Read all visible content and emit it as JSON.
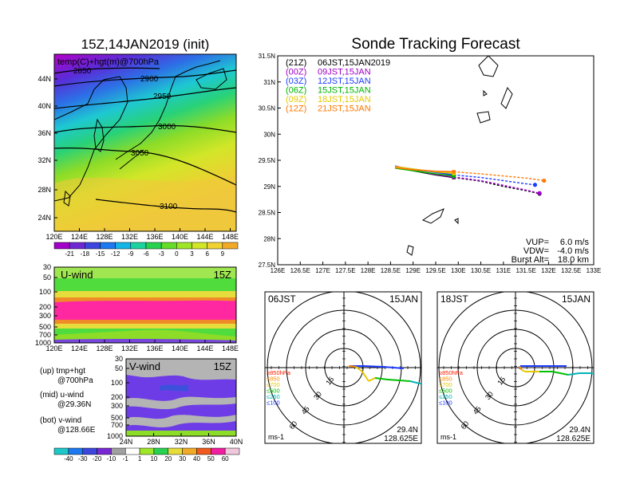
{
  "left": {
    "title": "15Z,14JAN2019 (init)",
    "map": {
      "label": "temp(C)+hgt(m)@700hPa",
      "lat_ticks": [
        "44N",
        "40N",
        "36N",
        "32N",
        "28N",
        "24N"
      ],
      "lon_ticks": [
        "120E",
        "124E",
        "128E",
        "132E",
        "136E",
        "140E",
        "144E",
        "148E"
      ],
      "contours": [
        "2850",
        "2900",
        "2950",
        "3000",
        "3050",
        "3100"
      ],
      "colorbar_ticks": [
        "-21",
        "-18",
        "-15",
        "-12",
        "-9",
        "-6",
        "-3",
        "0",
        "3",
        "6",
        "9"
      ]
    },
    "uwind": {
      "label": "U-wind",
      "time": "15Z",
      "p_ticks": [
        "30",
        "50",
        "100",
        "200",
        "300",
        "500",
        "700",
        "1000"
      ],
      "lon_ticks": [
        "120E",
        "124E",
        "128E",
        "132E",
        "136E",
        "140E",
        "144E",
        "148E"
      ]
    },
    "vwind": {
      "label": "V-wind",
      "time": "15Z",
      "p_ticks": [
        "30",
        "50",
        "100",
        "200",
        "300",
        "500",
        "700",
        "1000"
      ],
      "lat_ticks": [
        "24N",
        "28N",
        "32N",
        "36N",
        "40N"
      ],
      "colorbar_ticks": [
        "-40",
        "-30",
        "-20",
        "-10",
        "-1",
        "1",
        "10",
        "20",
        "30",
        "40",
        "50",
        "60"
      ]
    },
    "notes": [
      {
        "a": "(up) tmp+hgt",
        "b": "@700hPa"
      },
      {
        "a": "(mid) u-wind",
        "b": "@29.36N"
      },
      {
        "a": "(bot) v-wind",
        "b": "@128.66E"
      }
    ]
  },
  "right": {
    "title": "Sonde Tracking Forecast",
    "track": {
      "lat_ticks": [
        "31.5N",
        "31N",
        "30.5N",
        "30N",
        "29.5N",
        "29N",
        "28.5N",
        "28N",
        "27.5N"
      ],
      "lon_ticks": [
        "126E",
        "126.5E",
        "127E",
        "127.5E",
        "128E",
        "128.5E",
        "129E",
        "129.5E",
        "130E",
        "130.5E",
        "131E",
        "131.5E",
        "132E",
        "132.5E",
        "133E"
      ],
      "legend": [
        {
          "code": "(21Z)",
          "time": "06JST,15JAN2019",
          "color": "#000000"
        },
        {
          "code": "(00Z)",
          "time": "09JST,15JAN",
          "color": "#a000c8"
        },
        {
          "code": "(03Z)",
          "time": "12JST,15JAN",
          "color": "#1e3cff"
        },
        {
          "code": "(06Z)",
          "time": "15JST,15JAN",
          "color": "#00b400"
        },
        {
          "code": "(09Z)",
          "time": "18JST,15JAN",
          "color": "#e6c800"
        },
        {
          "code": "(12Z)",
          "time": "21JST,15JAN",
          "color": "#ff7800"
        }
      ],
      "params": [
        {
          "label": "VUP=",
          "value": "6.0 m/s"
        },
        {
          "label": "VDW=",
          "value": "-4.0 m/s"
        },
        {
          "label": "Burst Alt=",
          "value": "18.0 km"
        }
      ]
    },
    "polar": [
      {
        "time": "06JST",
        "date": "15JAN",
        "lat": "29.4N",
        "lon": "128.625E",
        "unit": "ms-1"
      },
      {
        "time": "18JST",
        "date": "15JAN",
        "lat": "29.4N",
        "lon": "128.625E",
        "unit": "ms-1"
      }
    ],
    "polar_rings": [
      "15",
      "30",
      "45",
      "60"
    ],
    "polar_legend": [
      {
        "label": "≥850hPa",
        "color": "#ff2000"
      },
      {
        "label": "≤850",
        "color": "#ff8c00"
      },
      {
        "label": "≤700",
        "color": "#e6c800"
      },
      {
        "label": "≤500",
        "color": "#00c000"
      },
      {
        "label": "≤250",
        "color": "#00b4b4"
      },
      {
        "label": "≤100",
        "color": "#1e3cff"
      }
    ]
  },
  "chart_data": [
    {
      "type": "line",
      "title": "Sonde Tracking Forecast",
      "xlim": [
        126,
        133
      ],
      "ylim": [
        27.5,
        31.5
      ],
      "series": [
        {
          "name": "(21Z) 06JST,15JAN2019",
          "x": [
            128.6,
            129.0,
            129.5,
            129.9,
            130.5,
            131.0,
            131.5,
            131.8
          ],
          "y": [
            29.38,
            29.3,
            29.22,
            29.17,
            29.1,
            29.0,
            28.92,
            28.86
          ]
        },
        {
          "name": "(00Z) 09JST,15JAN",
          "x": [
            128.6,
            129.0,
            129.5,
            129.9,
            130.5,
            131.0,
            131.5,
            131.8
          ],
          "y": [
            29.39,
            29.31,
            29.23,
            29.18,
            29.11,
            29.02,
            28.93,
            28.87
          ]
        },
        {
          "name": "(03Z) 12JST,15JAN",
          "x": [
            128.6,
            129.0,
            129.5,
            129.9,
            130.5,
            131.0,
            131.5,
            131.7
          ],
          "y": [
            29.38,
            29.33,
            29.27,
            29.22,
            29.17,
            29.11,
            29.05,
            29.03
          ]
        },
        {
          "name": "(06Z) 15JST,15JAN",
          "x": [
            128.6,
            129.0,
            129.5,
            129.9
          ],
          "y": [
            29.35,
            29.3,
            29.24,
            29.2
          ]
        },
        {
          "name": "(09Z) 18JST,15JAN",
          "x": [
            128.6,
            129.0,
            129.5,
            129.9
          ],
          "y": [
            29.38,
            29.33,
            29.28,
            29.25
          ]
        },
        {
          "name": "(12Z) 21JST,15JAN",
          "x": [
            128.6,
            129.0,
            129.5,
            129.9,
            130.5,
            131.0,
            131.5,
            131.9
          ],
          "y": [
            29.36,
            29.32,
            29.29,
            29.28,
            29.24,
            29.2,
            29.16,
            29.11
          ]
        }
      ]
    }
  ]
}
